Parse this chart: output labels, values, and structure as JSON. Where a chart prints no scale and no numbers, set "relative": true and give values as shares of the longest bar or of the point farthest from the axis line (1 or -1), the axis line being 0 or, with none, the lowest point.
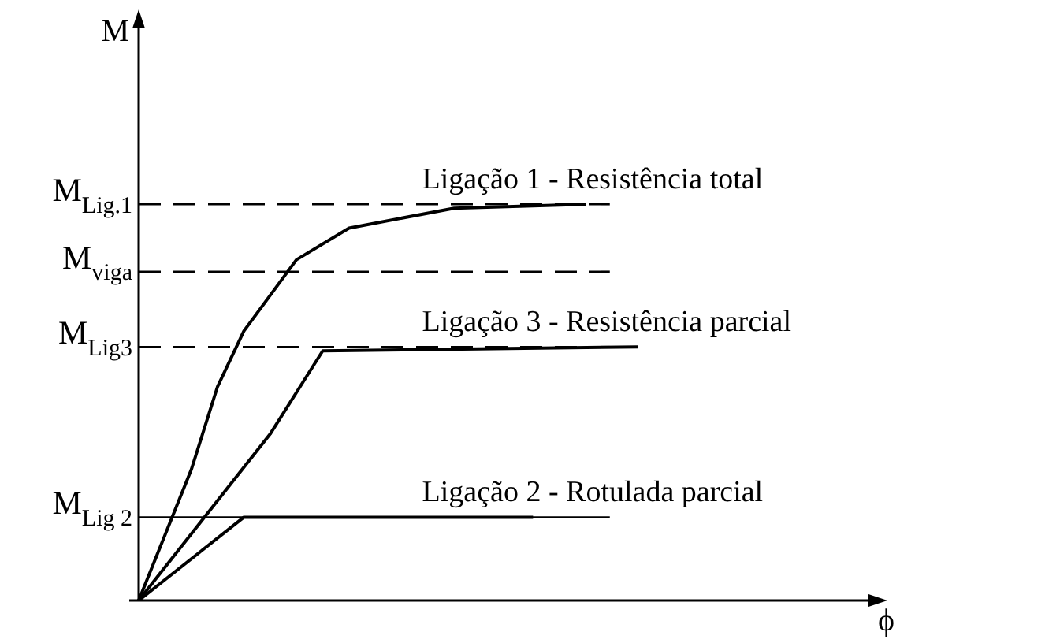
{
  "chart_data": {
    "type": "line",
    "relative": true,
    "xlabel": "ϕ",
    "ylabel": "M",
    "line_style": "solid",
    "categories": [
      null,
      null,
      null,
      null,
      null,
      null,
      null,
      null,
      null,
      null,
      null,
      null,
      null,
      null,
      null,
      null,
      null,
      null,
      null,
      null,
      null,
      null,
      null,
      null,
      null,
      null,
      null,
      null,
      null
    ],
    "series": [
      {
        "name": "Ligação 1 - Resistência total",
        "color": "#000000",
        "values": [
          0,
          null,
          0.33,
          0.54,
          0.68,
          null,
          0.86,
          null,
          0.94,
          null,
          null,
          null,
          0.99,
          null,
          null,
          null,
          null,
          1,
          null,
          null,
          null,
          null,
          null,
          null,
          null,
          null,
          null,
          null,
          null
        ]
      },
      {
        "name": "Ligação 3 - Resistência parcial",
        "color": "#000000",
        "values": [
          0,
          null,
          null,
          null,
          null,
          0.42,
          null,
          0.63,
          null,
          null,
          null,
          null,
          null,
          null,
          null,
          null,
          null,
          null,
          null,
          0.64,
          null,
          null,
          null,
          null,
          null,
          null,
          null,
          null,
          null
        ]
      },
      {
        "name": "Ligação 2 - Rotulada parcial",
        "color": "#000000",
        "values": [
          0,
          null,
          null,
          null,
          0.21,
          null,
          null,
          null,
          null,
          null,
          null,
          null,
          null,
          null,
          null,
          0.21,
          null,
          null,
          null,
          null,
          null,
          null,
          null,
          null,
          null,
          null,
          null,
          null,
          null
        ]
      }
    ],
    "ref_lines": [
      {
        "axis": "y",
        "value": 1,
        "label": "M$_{Lig.1}$",
        "color": "#000000",
        "line_style": "dashed"
      },
      {
        "axis": "y",
        "value": 0.83,
        "label": "M$_{viga}$",
        "color": "#000000",
        "line_style": "dashed"
      },
      {
        "axis": "y",
        "value": 0.64,
        "label": "M$_{Lig3}$",
        "color": "#000000",
        "line_style": "dashed"
      },
      {
        "axis": "y",
        "value": 0.21,
        "label": "M$_{Lig 2}$",
        "color": "#000000",
        "line_style": "solid"
      }
    ]
  }
}
